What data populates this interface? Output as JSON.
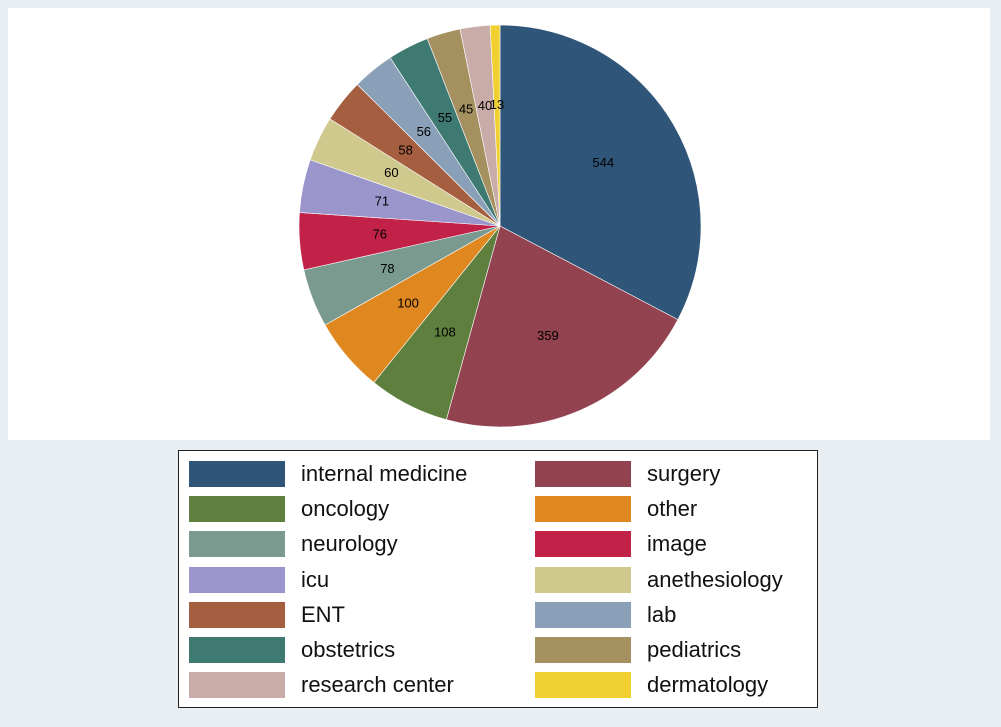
{
  "chart_data": {
    "type": "pie",
    "slices": [
      {
        "label": "internal medicine",
        "value": 544,
        "color": "#2f5578"
      },
      {
        "label": "surgery",
        "value": 359,
        "color": "#92434f"
      },
      {
        "label": "oncology",
        "value": 108,
        "color": "#5f7f3e"
      },
      {
        "label": "other",
        "value": 100,
        "color": "#e08820"
      },
      {
        "label": "neurology",
        "value": 78,
        "color": "#7a9a90"
      },
      {
        "label": "image",
        "value": 76,
        "color": "#c22248"
      },
      {
        "label": "icu",
        "value": 71,
        "color": "#9a96cc"
      },
      {
        "label": "anethesiology",
        "value": 60,
        "color": "#cfc98e"
      },
      {
        "label": "ENT",
        "value": 58,
        "color": "#a55f40"
      },
      {
        "label": "lab",
        "value": 56,
        "color": "#8aa0b8"
      },
      {
        "label": "obstetrics",
        "value": 55,
        "color": "#3e7a72"
      },
      {
        "label": "pediatrics",
        "value": 45,
        "color": "#a59060"
      },
      {
        "label": "research center",
        "value": 40,
        "color": "#c9aca8"
      },
      {
        "label": "dermatology",
        "value": 13,
        "color": "#f0d030"
      }
    ],
    "legend_placement": "bottom",
    "legend_columns": 2
  }
}
